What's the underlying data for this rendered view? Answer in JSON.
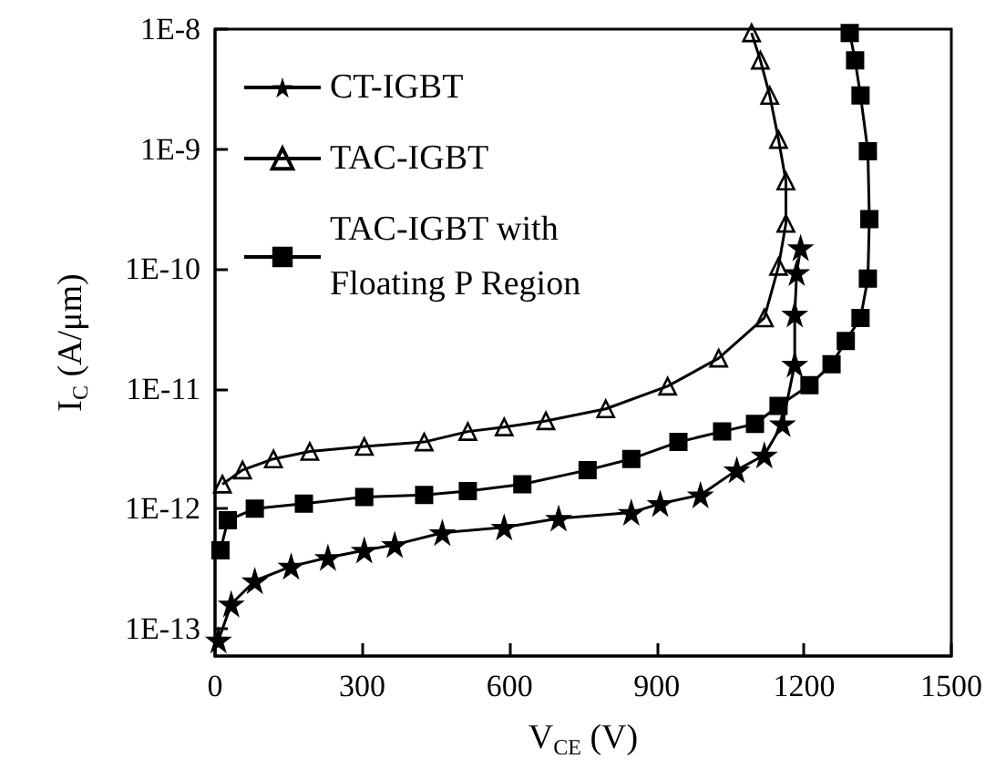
{
  "chart_data": {
    "type": "line",
    "xlabel": "V$_{CE}$ (V)",
    "ylabel": "I$_{C}$ (A/μm)",
    "log": "y",
    "xlim": [
      0,
      1500
    ],
    "xticks": [
      0,
      300,
      600,
      900,
      1200,
      1500
    ],
    "ylim": [
      5.9e-14,
      1e-08
    ],
    "yticks": [
      {
        "value": 1e-13,
        "label": "1E-13"
      },
      {
        "value": 1e-12,
        "label": "1E-12"
      },
      {
        "value": 1e-11,
        "label": "1E-11"
      },
      {
        "value": 1e-10,
        "label": "1E-10"
      },
      {
        "value": 1e-09,
        "label": "1E-9"
      },
      {
        "value": 1e-08,
        "label": "1E-8"
      }
    ],
    "grid": false,
    "legend": "top left",
    "line_style": "solid",
    "series": [
      {
        "name": "CT-IGBT",
        "color": "#000000",
        "marker": "star",
        "x": [
          7,
          33,
          81,
          155,
          230,
          304,
          366,
          463,
          589,
          700,
          848,
          907,
          989,
          1063,
          1119,
          1156,
          1181,
          1181,
          1185,
          1193
        ],
        "values": [
          8e-14,
          1.6e-13,
          2.5e-13,
          3.3e-13,
          3.9e-13,
          4.5e-13,
          5e-13,
          6.3e-13,
          7e-13,
          8.3e-13,
          9.3e-13,
          1.1e-12,
          1.3e-12,
          2.1e-12,
          2.8e-12,
          5.1e-12,
          1.6e-11,
          4.2e-11,
          9.3e-11,
          1.5e-10
        ]
      },
      {
        "name": "TAC-IGBT",
        "color": "#000000",
        "marker": "triangle",
        "x": [
          15,
          56,
          119,
          193,
          304,
          426,
          515,
          589,
          674,
          796,
          922,
          1026,
          1119,
          1148,
          1163,
          1163,
          1148,
          1130,
          1111,
          1093
        ],
        "values": [
          1.6e-12,
          2.1e-12,
          2.6e-12,
          3e-12,
          3.3e-12,
          3.6e-12,
          4.4e-12,
          4.8e-12,
          5.4e-12,
          6.8e-12,
          1.05e-11,
          1.8e-11,
          3.9e-11,
          1.05e-10,
          2.4e-10,
          5.4e-10,
          1.2e-09,
          2.8e-09,
          5.5e-09,
          9.3e-09
        ]
      },
      {
        "name": "TAC-IGBT with\nFloating P Region",
        "color": "#000000",
        "marker": "square",
        "x": [
          11,
          26,
          81,
          181,
          304,
          426,
          515,
          626,
          759,
          848,
          944,
          1033,
          1100,
          1148,
          1211,
          1256,
          1285,
          1315,
          1330,
          1333,
          1330,
          1315,
          1304,
          1293
        ],
        "values": [
          4.5e-13,
          8e-13,
          1e-12,
          1.1e-12,
          1.25e-12,
          1.3e-12,
          1.4e-12,
          1.6e-12,
          2.1e-12,
          2.6e-12,
          3.6e-12,
          4.4e-12,
          5.1e-12,
          7.2e-12,
          1.07e-11,
          1.6e-11,
          2.5e-11,
          3.9e-11,
          8.3e-11,
          2.6e-10,
          9.6e-10,
          2.8e-09,
          5.5e-09,
          9.3e-09
        ]
      }
    ]
  }
}
